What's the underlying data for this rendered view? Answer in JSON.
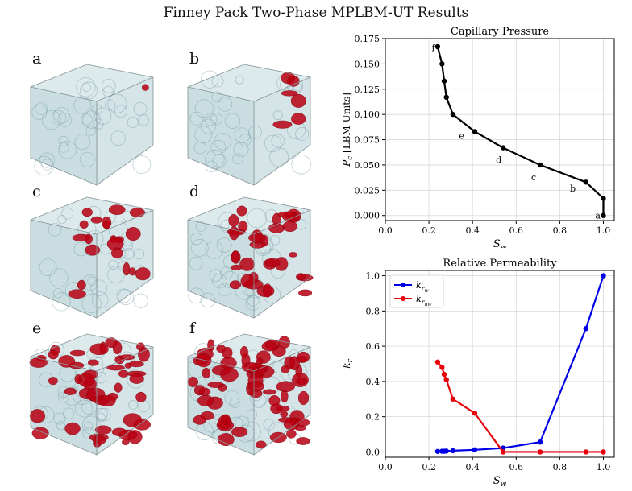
{
  "figure_title": "Finney Pack Two-Phase MPLBM-UT Results",
  "panels": [
    {
      "label": "a",
      "fill": 0.02
    },
    {
      "label": "b",
      "fill": 0.08
    },
    {
      "label": "c",
      "fill": 0.28
    },
    {
      "label": "d",
      "fill": 0.45
    },
    {
      "label": "e",
      "fill": 0.7
    },
    {
      "label": "f",
      "fill": 0.95
    }
  ],
  "colors": {
    "glass": "#9fc3c9",
    "wet": "#b80012",
    "nonwet_series": "#e8000b",
    "wet_series": "#0000e6",
    "pc_series": "#000000"
  },
  "chart_data": [
    {
      "type": "line",
      "title": "Capillary Pressure",
      "xlabel": "S",
      "xlabel_sub": "w",
      "ylabel": "P",
      "ylabel_sub": "c",
      "ylabel_rest": " [LBM Units]",
      "xlim": [
        0,
        1.05
      ],
      "ylim": [
        -0.005,
        0.175
      ],
      "xticks": [
        0.0,
        0.2,
        0.4,
        0.6,
        0.8,
        1.0
      ],
      "xtick_labels": [
        "0.0",
        "0.2",
        "0.4",
        "0.6",
        "0.8",
        "1.0"
      ],
      "yticks": [
        0.0,
        0.025,
        0.05,
        0.075,
        0.1,
        0.125,
        0.15,
        0.175
      ],
      "ytick_labels": [
        "0.000",
        "0.025",
        "0.050",
        "0.075",
        "0.100",
        "0.125",
        "0.150",
        "0.175"
      ],
      "grid": true,
      "series": [
        {
          "x": [
            1.0,
            1.0,
            0.92,
            0.71,
            0.54,
            0.41,
            0.31,
            0.28,
            0.27,
            0.26,
            0.24
          ],
          "y": [
            0.0,
            0.017,
            0.033,
            0.05,
            0.067,
            0.083,
            0.1,
            0.117,
            0.133,
            0.15,
            0.167
          ]
        }
      ],
      "annotations": [
        {
          "text": "a",
          "x": 0.975,
          "y": 0.0
        },
        {
          "text": "b",
          "x": 0.86,
          "y": 0.027
        },
        {
          "text": "c",
          "x": 0.68,
          "y": 0.038
        },
        {
          "text": "d",
          "x": 0.52,
          "y": 0.055
        },
        {
          "text": "e",
          "x": 0.35,
          "y": 0.079
        },
        {
          "text": "f",
          "x": 0.22,
          "y": 0.166
        }
      ]
    },
    {
      "type": "line",
      "title": "Relative Permeability",
      "xlabel": "S",
      "xlabel_sub": "w",
      "ylabel": "k",
      "ylabel_sub": "r",
      "xlim": [
        0,
        1.05
      ],
      "ylim": [
        -0.03,
        1.03
      ],
      "xticks": [
        0.0,
        0.2,
        0.4,
        0.6,
        0.8,
        1.0
      ],
      "xtick_labels": [
        "0.0",
        "0.2",
        "0.4",
        "0.6",
        "0.8",
        "1.0"
      ],
      "yticks": [
        0.0,
        0.2,
        0.4,
        0.6,
        0.8,
        1.0
      ],
      "ytick_labels": [
        "0.0",
        "0.2",
        "0.4",
        "0.6",
        "0.8",
        "1.0"
      ],
      "grid": true,
      "legend": "top-left",
      "series": [
        {
          "name": "k",
          "name_sub": "r",
          "name_subsub": "w",
          "x": [
            0.24,
            0.26,
            0.27,
            0.28,
            0.31,
            0.41,
            0.54,
            0.71,
            0.92,
            1.0
          ],
          "y": [
            0.003,
            0.004,
            0.004,
            0.005,
            0.007,
            0.012,
            0.022,
            0.056,
            0.7,
            1.0
          ]
        },
        {
          "name": "k",
          "name_sub": "r",
          "name_subsub": "nw",
          "x": [
            0.24,
            0.26,
            0.27,
            0.28,
            0.31,
            0.41,
            0.54,
            0.71,
            0.92,
            1.0
          ],
          "y": [
            0.51,
            0.48,
            0.44,
            0.41,
            0.3,
            0.22,
            0.0,
            0.0,
            0.0,
            0.0
          ]
        }
      ]
    }
  ]
}
